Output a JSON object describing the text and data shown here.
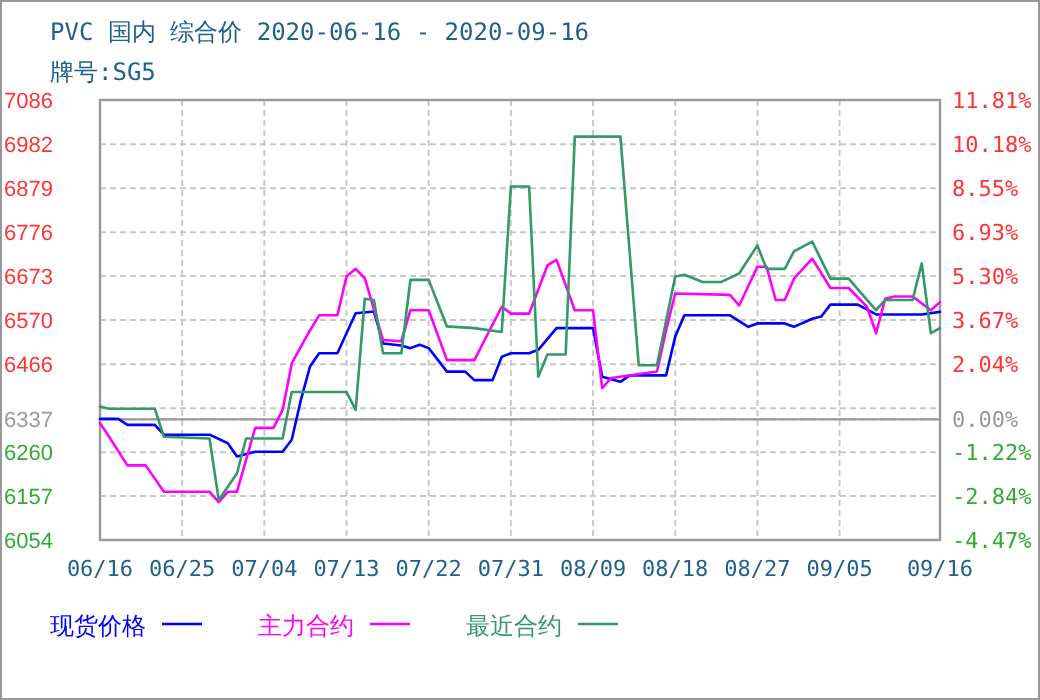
{
  "chart_data": {
    "type": "line",
    "title": "PVC 国内 综合价 2020-06-16 - 2020-09-16",
    "subtitle": "牌号:SG5",
    "xlim": [
      "2020-06-16",
      "2020-09-16"
    ],
    "xticks": [
      {
        "value": "2020-06-16",
        "label": "06/16"
      },
      {
        "value": "2020-06-25",
        "label": "06/25"
      },
      {
        "value": "2020-07-04",
        "label": "07/04"
      },
      {
        "value": "2020-07-13",
        "label": "07/13"
      },
      {
        "value": "2020-07-22",
        "label": "07/22"
      },
      {
        "value": "2020-07-31",
        "label": "07/31"
      },
      {
        "value": "2020-08-09",
        "label": "08/09"
      },
      {
        "value": "2020-08-18",
        "label": "08/18"
      },
      {
        "value": "2020-08-27",
        "label": "08/27"
      },
      {
        "value": "2020-09-05",
        "label": "09/05"
      },
      {
        "value": "2020-09-16",
        "label": "09/16"
      }
    ],
    "ylim": [
      6054,
      7086
    ],
    "yticks": [
      7086,
      6982,
      6879,
      6776,
      6673,
      6570,
      6466,
      {
        "value": 6363,
        "label": null
      },
      6337,
      6260,
      6157,
      6054
    ],
    "y2lim": [
      -4.47,
      11.81
    ],
    "y2ticks": [
      {
        "value": 11.81,
        "label": "11.81%"
      },
      {
        "value": 10.18,
        "label": "10.18%"
      },
      {
        "value": 8.55,
        "label": "8.55%"
      },
      {
        "value": 6.93,
        "label": "6.93%"
      },
      {
        "value": 5.3,
        "label": "5.30%"
      },
      {
        "value": 3.67,
        "label": "3.67%"
      },
      {
        "value": 2.04,
        "label": "2.04%"
      },
      {
        "value": 0,
        "label": "0.00%"
      },
      {
        "value": -1.22,
        "label": "-1.22%"
      },
      {
        "value": -2.84,
        "label": "-2.84%"
      },
      {
        "value": -4.47,
        "label": "-4.47%"
      }
    ],
    "ref_lines": [
      {
        "axis": "y",
        "value": 6337,
        "label": null,
        "color": "#999999",
        "line_style": "solid"
      }
    ],
    "grid": true,
    "legend": "bottom",
    "line_style": "solid",
    "series": [
      {
        "name": "现货价格",
        "color": "#0000ff",
        "x": [
          "2020-06-16",
          "2020-06-18",
          "2020-06-19",
          "2020-06-22",
          "2020-06-23",
          "2020-06-28",
          "2020-06-30",
          "2020-07-01",
          "2020-07-03",
          "2020-07-06",
          "2020-07-07",
          "2020-07-08",
          "2020-07-09",
          "2020-07-10",
          "2020-07-12",
          "2020-07-14",
          "2020-07-16",
          "2020-07-17",
          "2020-07-19",
          "2020-07-20",
          "2020-07-21",
          "2020-07-22",
          "2020-07-24",
          "2020-07-26",
          "2020-07-27",
          "2020-07-29",
          "2020-07-30",
          "2020-07-31",
          "2020-08-02",
          "2020-08-03",
          "2020-08-05",
          "2020-08-09",
          "2020-08-10",
          "2020-08-12",
          "2020-08-13",
          "2020-08-17",
          "2020-08-18",
          "2020-08-19",
          "2020-08-24",
          "2020-08-26",
          "2020-08-27",
          "2020-08-30",
          "2020-08-31",
          "2020-09-02",
          "2020-09-03",
          "2020-09-04",
          "2020-09-07",
          "2020-09-09",
          "2020-09-14",
          "2020-09-16"
        ],
        "values": [
          6338,
          6338,
          6324,
          6324,
          6301,
          6301,
          6281,
          6250,
          6261,
          6261,
          6289,
          6382,
          6461,
          6492,
          6492,
          6586,
          6590,
          6515,
          6510,
          6504,
          6512,
          6504,
          6449,
          6449,
          6429,
          6429,
          6484,
          6492,
          6492,
          6500,
          6551,
          6551,
          6437,
          6425,
          6440,
          6440,
          6531,
          6581,
          6581,
          6554,
          6562,
          6562,
          6554,
          6573,
          6578,
          6606,
          6606,
          6583,
          6583,
          6589
        ]
      },
      {
        "name": "主力合约",
        "color": "#ff00ff",
        "x": [
          "2020-06-16",
          "2020-06-17",
          "2020-06-19",
          "2020-06-21",
          "2020-06-23",
          "2020-06-28",
          "2020-06-29",
          "2020-06-30",
          "2020-07-01",
          "2020-07-03",
          "2020-07-05",
          "2020-07-06",
          "2020-07-07",
          "2020-07-09",
          "2020-07-10",
          "2020-07-12",
          "2020-07-13",
          "2020-07-14",
          "2020-07-15",
          "2020-07-17",
          "2020-07-19",
          "2020-07-20",
          "2020-07-22",
          "2020-07-24",
          "2020-07-27",
          "2020-07-30",
          "2020-07-31",
          "2020-08-02",
          "2020-08-04",
          "2020-08-05",
          "2020-08-07",
          "2020-08-09",
          "2020-08-10",
          "2020-08-11",
          "2020-08-16",
          "2020-08-17",
          "2020-08-18",
          "2020-08-24",
          "2020-08-25",
          "2020-08-27",
          "2020-08-28",
          "2020-08-29",
          "2020-08-30",
          "2020-08-31",
          "2020-09-02",
          "2020-09-04",
          "2020-09-06",
          "2020-09-08",
          "2020-09-09",
          "2020-09-10",
          "2020-09-11",
          "2020-09-13",
          "2020-09-15",
          "2020-09-16"
        ],
        "values": [
          6328,
          6296,
          6229,
          6229,
          6167,
          6167,
          6143,
          6167,
          6167,
          6317,
          6317,
          6359,
          6468,
          6546,
          6581,
          6581,
          6672,
          6690,
          6668,
          6523,
          6520,
          6593,
          6593,
          6476,
          6476,
          6601,
          6585,
          6585,
          6698,
          6711,
          6593,
          6593,
          6410,
          6434,
          6449,
          6546,
          6632,
          6629,
          6604,
          6695,
          6695,
          6617,
          6617,
          6667,
          6714,
          6645,
          6645,
          6601,
          6539,
          6620,
          6625,
          6625,
          6593,
          6612
        ]
      },
      {
        "name": "最近合约",
        "color": "#339966",
        "x": [
          "2020-06-16",
          "2020-06-17",
          "2020-06-22",
          "2020-06-23",
          "2020-06-28",
          "2020-06-29",
          "2020-07-01",
          "2020-07-02",
          "2020-07-06",
          "2020-07-07",
          "2020-07-13",
          "2020-07-14",
          "2020-07-15",
          "2020-07-16",
          "2020-07-17",
          "2020-07-19",
          "2020-07-20",
          "2020-07-22",
          "2020-07-24",
          "2020-07-27",
          "2020-07-30",
          "2020-07-31",
          "2020-08-02",
          "2020-08-03",
          "2020-08-04",
          "2020-08-06",
          "2020-08-07",
          "2020-08-12",
          "2020-08-14",
          "2020-08-16",
          "2020-08-18",
          "2020-08-19",
          "2020-08-21",
          "2020-08-23",
          "2020-08-25",
          "2020-08-27",
          "2020-08-28",
          "2020-08-30",
          "2020-08-31",
          "2020-09-02",
          "2020-09-04",
          "2020-09-06",
          "2020-09-08",
          "2020-09-09",
          "2020-09-10",
          "2020-09-13",
          "2020-09-14",
          "2020-09-15",
          "2020-09-16"
        ],
        "values": [
          6367,
          6362,
          6362,
          6296,
          6292,
          6148,
          6210,
          6292,
          6292,
          6401,
          6401,
          6359,
          6620,
          6617,
          6492,
          6492,
          6664,
          6664,
          6555,
          6551,
          6542,
          6883,
          6883,
          6437,
          6489,
          6489,
          7000,
          7000,
          6464,
          6464,
          6672,
          6676,
          6659,
          6659,
          6679,
          6745,
          6690,
          6690,
          6731,
          6754,
          6667,
          6667,
          6617,
          6593,
          6617,
          6617,
          6703,
          6539,
          6551
        ]
      }
    ]
  }
}
